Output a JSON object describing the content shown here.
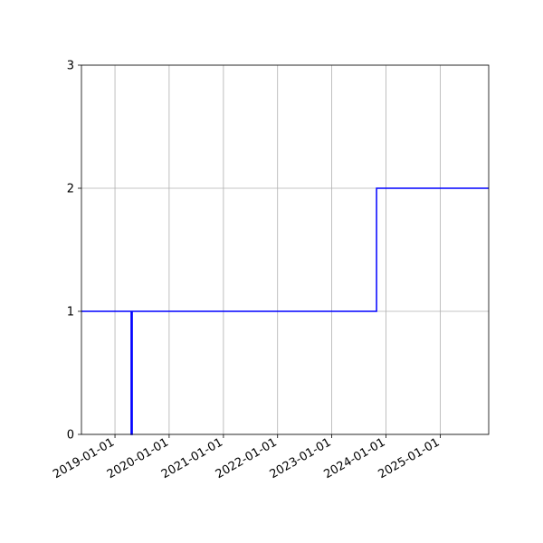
{
  "chart_data": {
    "type": "line",
    "title": "",
    "xlabel": "",
    "ylabel": "",
    "x_axis_type": "date",
    "xlim": [
      "2018-05-20",
      "2025-11-24"
    ],
    "ylim": [
      0,
      3
    ],
    "x_ticks": [
      "2019-01-01",
      "2020-01-01",
      "2021-01-01",
      "2022-01-01",
      "2023-01-01",
      "2024-01-01",
      "2025-01-01"
    ],
    "y_ticks": [
      0,
      1,
      2,
      3
    ],
    "grid": true,
    "legend": "none",
    "step": true,
    "series": [
      {
        "color": "#0000ff",
        "x": [
          "2018-05-20",
          "2019-04-20",
          "2019-04-20",
          "2019-04-27",
          "2019-04-27",
          "2023-10-30",
          "2023-10-30",
          "2025-11-24"
        ],
        "y": [
          1,
          1,
          0,
          0,
          1,
          1,
          2,
          2
        ]
      }
    ]
  }
}
